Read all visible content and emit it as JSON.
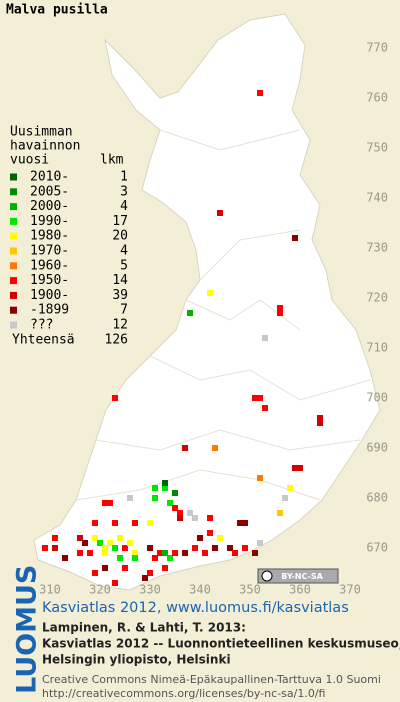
{
  "map": {
    "title": "Malva pusilla",
    "xlim": [
      300,
      380
    ],
    "ylim": [
      660,
      780
    ],
    "xticks": [
      310,
      320,
      330,
      340,
      350,
      360,
      370
    ],
    "yticks": [
      670,
      680,
      690,
      700,
      710,
      720,
      730,
      740,
      750,
      760,
      770
    ],
    "cc_badge": "BY-NC-SA",
    "observations": [
      [
        352,
        761,
        7
      ],
      [
        344,
        737,
        8
      ],
      [
        359,
        732,
        9
      ],
      [
        342,
        721,
        4
      ],
      [
        356,
        718,
        7
      ],
      [
        356,
        717,
        7
      ],
      [
        338,
        717,
        2
      ],
      [
        353,
        712,
        10
      ],
      [
        351,
        700,
        7
      ],
      [
        352,
        700,
        7
      ],
      [
        323,
        700,
        7
      ],
      [
        353,
        698,
        7
      ],
      [
        364,
        695,
        8
      ],
      [
        364,
        696,
        8
      ],
      [
        337,
        690,
        8
      ],
      [
        343,
        690,
        6
      ],
      [
        360,
        686,
        8
      ],
      [
        359,
        686,
        8
      ],
      [
        352,
        684,
        6
      ],
      [
        358,
        682,
        4
      ],
      [
        357,
        680,
        10
      ],
      [
        356,
        677,
        5
      ],
      [
        321,
        679,
        7
      ],
      [
        322,
        679,
        7
      ],
      [
        326,
        680,
        10
      ],
      [
        331,
        682,
        3
      ],
      [
        331,
        680,
        3
      ],
      [
        333,
        682,
        3
      ],
      [
        334,
        679,
        3
      ],
      [
        335,
        678,
        7
      ],
      [
        336,
        677,
        7
      ],
      [
        336,
        676,
        8
      ],
      [
        338,
        677,
        10
      ],
      [
        339,
        676,
        10
      ],
      [
        330,
        675,
        4
      ],
      [
        342,
        676,
        7
      ],
      [
        348,
        675,
        9
      ],
      [
        349,
        675,
        9
      ],
      [
        327,
        675,
        7
      ],
      [
        323,
        675,
        7
      ],
      [
        319,
        675,
        7
      ],
      [
        309,
        670,
        7
      ],
      [
        311,
        670,
        8
      ],
      [
        311,
        672,
        7
      ],
      [
        316,
        672,
        8
      ],
      [
        317,
        671,
        9
      ],
      [
        319,
        672,
        4
      ],
      [
        320,
        671,
        3
      ],
      [
        321,
        670,
        4
      ],
      [
        322,
        671,
        4
      ],
      [
        323,
        670,
        3
      ],
      [
        324,
        672,
        4
      ],
      [
        325,
        670,
        7
      ],
      [
        326,
        671,
        4
      ],
      [
        327,
        669,
        4
      ],
      [
        321,
        669,
        4
      ],
      [
        318,
        669,
        7
      ],
      [
        324,
        668,
        3
      ],
      [
        327,
        668,
        3
      ],
      [
        316,
        669,
        7
      ],
      [
        313,
        668,
        9
      ],
      [
        330,
        670,
        9
      ],
      [
        331,
        668,
        7
      ],
      [
        332,
        669,
        7
      ],
      [
        333,
        669,
        2
      ],
      [
        334,
        668,
        3
      ],
      [
        335,
        669,
        7
      ],
      [
        337,
        669,
        9
      ],
      [
        339,
        670,
        7
      ],
      [
        341,
        669,
        7
      ],
      [
        343,
        670,
        9
      ],
      [
        346,
        670,
        9
      ],
      [
        347,
        669,
        7
      ],
      [
        349,
        670,
        7
      ],
      [
        351,
        669,
        9
      ],
      [
        352,
        671,
        10
      ],
      [
        342,
        673,
        7
      ],
      [
        344,
        672,
        4
      ],
      [
        340,
        672,
        9
      ],
      [
        325,
        666,
        7
      ],
      [
        321,
        666,
        9
      ],
      [
        330,
        665,
        7
      ],
      [
        333,
        666,
        7
      ],
      [
        329,
        664,
        9
      ],
      [
        323,
        663,
        7
      ],
      [
        319,
        665,
        7
      ],
      [
        333,
        683,
        0
      ],
      [
        335,
        681,
        1
      ]
    ]
  },
  "legend": {
    "heading": [
      "Uusimman",
      "havainnon",
      "vuosi"
    ],
    "count_heading": "lkm",
    "rows": [
      {
        "label": "2010-",
        "count": 1,
        "color": "#006400"
      },
      {
        "label": "2005-",
        "count": 3,
        "color": "#008c00"
      },
      {
        "label": "2000-",
        "count": 4,
        "color": "#00b400"
      },
      {
        "label": "1990-",
        "count": 17,
        "color": "#00e600"
      },
      {
        "label": "1980-",
        "count": 20,
        "color": "#ffff00"
      },
      {
        "label": "1970-",
        "count": 4,
        "color": "#ffc800"
      },
      {
        "label": "1960-",
        "count": 5,
        "color": "#ff7800"
      },
      {
        "label": "1950-",
        "count": 14,
        "color": "#ff0000"
      },
      {
        "label": "1900-",
        "count": 39,
        "color": "#d20000"
      },
      {
        "label": "-1899",
        "count": 7,
        "color": "#8c0000"
      },
      {
        "label": "???",
        "count": 12,
        "color": "#c8c8c8"
      }
    ],
    "total_label": "Yhteensä",
    "total": 126
  },
  "footer": {
    "logo": "LUOMUS",
    "link": "Kasviatlas 2012, www.luomus.fi/kasviatlas",
    "citation": [
      "Lampinen, R. & Lahti, T. 2013:",
      "Kasviatlas 2012 -- Luonnontieteellinen keskusmuseo,",
      "Helsingin yliopisto, Helsinki"
    ],
    "license": [
      "Creative Commons Nimeä-Epäkaupallinen-Tarttuva 1.0 Suomi",
      "http://creativecommons.org/licenses/by-nc-sa/1.0/fi"
    ]
  }
}
